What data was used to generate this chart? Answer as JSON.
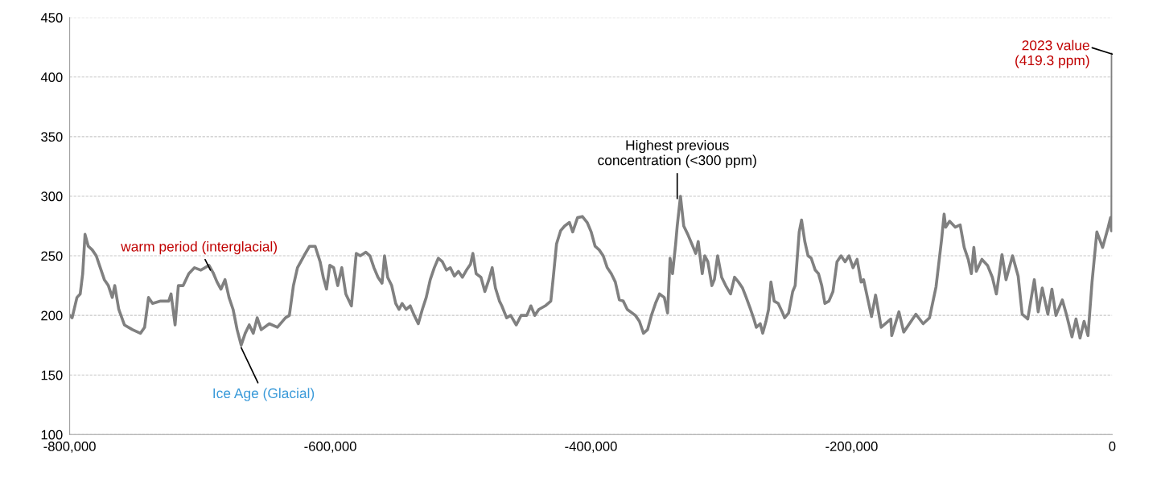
{
  "chart_data": {
    "type": "line",
    "x": [
      -800000,
      -798100,
      -794400,
      -791900,
      -790000,
      -788200,
      -785700,
      -782700,
      -779600,
      -776500,
      -773400,
      -770300,
      -767300,
      -765400,
      -762300,
      -758000,
      -751800,
      -745700,
      -742500,
      -739500,
      -736400,
      -730200,
      -724000,
      -722200,
      -719100,
      -716600,
      -712900,
      -708600,
      -704200,
      -699300,
      -693100,
      -690000,
      -686900,
      -683900,
      -680800,
      -677700,
      -674600,
      -671500,
      -668400,
      -665300,
      -662200,
      -659100,
      -656100,
      -653000,
      -646800,
      -640600,
      -634400,
      -631400,
      -628300,
      -625200,
      -620200,
      -615900,
      -611600,
      -607800,
      -605400,
      -602900,
      -600400,
      -597400,
      -594300,
      -591200,
      -588100,
      -583800,
      -580100,
      -577000,
      -572700,
      -569600,
      -566500,
      -563400,
      -560300,
      -558400,
      -556000,
      -552900,
      -549800,
      -547300,
      -544900,
      -541800,
      -538700,
      -535600,
      -532500,
      -529400,
      -526400,
      -523300,
      -520200,
      -517100,
      -514000,
      -510900,
      -507900,
      -504800,
      -501700,
      -498600,
      -495500,
      -492400,
      -490600,
      -488100,
      -484400,
      -481400,
      -478300,
      -475800,
      -473300,
      -470200,
      -468400,
      -464700,
      -461600,
      -457300,
      -453600,
      -449200,
      -446100,
      -443100,
      -440000,
      -435100,
      -430800,
      -428900,
      -426400,
      -423300,
      -420200,
      -416500,
      -414000,
      -410300,
      -406600,
      -402900,
      -399800,
      -396800,
      -393700,
      -390600,
      -387500,
      -384400,
      -381300,
      -378200,
      -375200,
      -372100,
      -365900,
      -362800,
      -359700,
      -356600,
      -353600,
      -350500,
      -347400,
      -343700,
      -341200,
      -339300,
      -337400,
      -335000,
      -333800,
      -331300,
      -328800,
      -325700,
      -322600,
      -319600,
      -317700,
      -314600,
      -312700,
      -310300,
      -307200,
      -305300,
      -302800,
      -299700,
      -296600,
      -292900,
      -289800,
      -286800,
      -283700,
      -281200,
      -277500,
      -275000,
      -273100,
      -270100,
      -268200,
      -265700,
      -263700,
      -261900,
      -259400,
      -256300,
      -253300,
      -251400,
      -248300,
      -245200,
      -243300,
      -240200,
      -238400,
      -235900,
      -233400,
      -231000,
      -227900,
      -225400,
      -222900,
      -220500,
      -217400,
      -214300,
      -211200,
      -208100,
      -205000,
      -202000,
      -198900,
      -195800,
      -192700,
      -190800,
      -184700,
      -181600,
      -177300,
      -169900,
      -169200,
      -163700,
      -160000,
      -150700,
      -145100,
      -140200,
      -135200,
      -130900,
      -129000,
      -127800,
      -124800,
      -120400,
      -116700,
      -113600,
      -110500,
      -108100,
      -106200,
      -104300,
      -100000,
      -95700,
      -92000,
      -88900,
      -84600,
      -81500,
      -76500,
      -72200,
      -69100,
      -64800,
      -59800,
      -56800,
      -53700,
      -49400,
      -46300,
      -43200,
      -38300,
      -35200,
      -30900,
      -27800,
      -24700,
      -21600,
      -18600,
      -15500,
      -11800,
      -7400,
      -3100,
      -1300,
      -600,
      -200,
      0
    ],
    "series": [
      {
        "color": "#808080",
        "values": [
          200,
          198,
          215,
          218,
          235,
          268,
          258,
          255,
          250,
          240,
          230,
          225,
          215,
          225,
          205,
          192,
          188,
          185,
          190,
          215,
          210,
          212,
          212,
          218,
          192,
          225,
          225,
          235,
          240,
          238,
          242,
          236,
          228,
          222,
          230,
          215,
          205,
          188,
          175,
          185,
          192,
          185,
          198,
          188,
          193,
          190,
          198,
          200,
          225,
          240,
          250,
          258,
          258,
          245,
          232,
          222,
          242,
          240,
          225,
          240,
          218,
          208,
          252,
          250,
          253,
          250,
          240,
          232,
          227,
          250,
          232,
          225,
          210,
          205,
          210,
          205,
          208,
          200,
          193,
          205,
          215,
          230,
          240,
          248,
          245,
          238,
          240,
          233,
          237,
          232,
          238,
          243,
          252,
          235,
          232,
          220,
          230,
          240,
          223,
          212,
          208,
          198,
          200,
          192,
          200,
          200,
          208,
          200,
          205,
          208,
          212,
          232,
          260,
          271,
          275,
          278,
          270,
          282,
          283,
          278,
          270,
          258,
          255,
          250,
          240,
          235,
          228,
          213,
          212,
          205,
          200,
          195,
          185,
          188,
          200,
          210,
          218,
          215,
          202,
          248,
          235,
          260,
          275,
          300,
          275,
          268,
          260,
          252,
          262,
          235,
          250,
          245,
          225,
          230,
          250,
          232,
          225,
          218,
          232,
          228,
          223,
          216,
          205,
          197,
          190,
          193,
          185,
          195,
          205,
          228,
          212,
          210,
          203,
          198,
          202,
          220,
          225,
          270,
          280,
          262,
          250,
          248,
          238,
          235,
          225,
          210,
          212,
          220,
          245,
          250,
          245,
          250,
          240,
          247,
          228,
          230,
          199,
          217,
          190,
          197,
          183,
          203,
          186,
          201,
          193,
          198,
          224,
          264,
          285,
          274,
          279,
          274,
          276,
          257,
          247,
          235,
          257,
          237,
          247,
          242,
          232,
          218,
          251,
          230,
          250,
          233,
          201,
          197,
          230,
          203,
          223,
          201,
          222,
          200,
          213,
          201,
          182,
          197,
          181,
          195,
          183,
          228,
          270,
          257,
          274,
          282,
          271,
          285,
          419.3
        ]
      }
    ],
    "xlim": [
      -800000,
      0
    ],
    "xticks": [
      {
        "value": -800000,
        "label": "-800,000"
      },
      {
        "value": -600000,
        "label": "-600,000"
      },
      {
        "value": -400000,
        "label": "-400,000"
      },
      {
        "value": -200000,
        "label": "-200,000"
      },
      0
    ],
    "ylim": [
      100,
      450
    ],
    "yticks": [
      100,
      150,
      200,
      250,
      300,
      350,
      400,
      450
    ],
    "grid": "y",
    "marker": "none",
    "line_style": "solid",
    "annotations": [
      {
        "text": "warm period (interglacial)",
        "x": -692000,
        "y": 238
      },
      {
        "text": "Ice Age (Glacial)",
        "x": -668400,
        "y": 173
      },
      {
        "text": "Highest previous\nconcentration (<300 ppm)",
        "x": -333800,
        "y": 298
      },
      {
        "text": "2023 value\n(419.3 ppm)",
        "x": 0,
        "y": 419.3
      }
    ]
  }
}
